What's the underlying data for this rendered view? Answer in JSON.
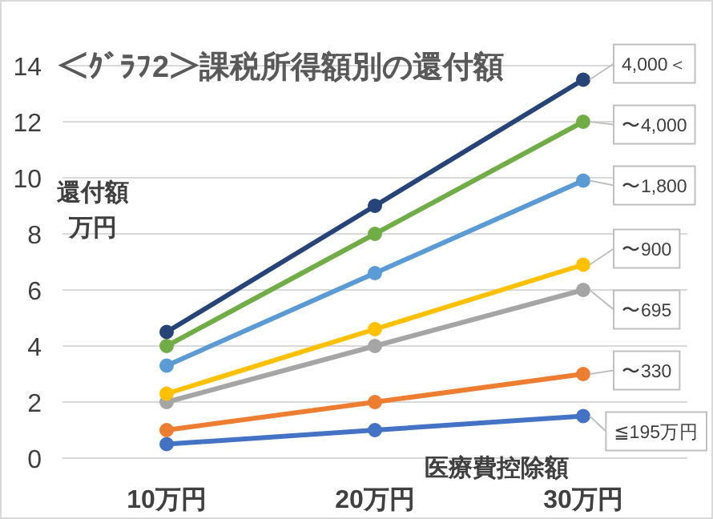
{
  "chart_data": {
    "type": "line",
    "title": "＜ｸﾞﾗﾌ2＞課税所得額別の還付額",
    "xlabel": "医療費控除額",
    "ylabel": "還付額万円",
    "categories": [
      "10万円",
      "20万円",
      "30万円"
    ],
    "series": [
      {
        "name": "≦195万円",
        "color": "#4472c4",
        "values": [
          0.5,
          1,
          1.5
        ]
      },
      {
        "name": "〜330",
        "color": "#ed7d31",
        "values": [
          1,
          2,
          3
        ]
      },
      {
        "name": "〜695",
        "color": "#a5a5a5",
        "values": [
          2,
          4,
          6
        ]
      },
      {
        "name": "〜900",
        "color": "#ffc000",
        "values": [
          2.3,
          4.6,
          6.9
        ]
      },
      {
        "name": "〜1,800",
        "color": "#5b9bd5",
        "values": [
          3.3,
          6.6,
          9.9
        ]
      },
      {
        "name": "〜4,000",
        "color": "#70ad47",
        "values": [
          4,
          8,
          12
        ]
      },
      {
        "name": "4,000＜",
        "color": "#264478",
        "values": [
          4.5,
          9,
          13.5
        ]
      }
    ],
    "ylim": [
      0,
      14
    ],
    "yticks": [
      0,
      2,
      4,
      6,
      8,
      10,
      12,
      14
    ],
    "grid": "y",
    "marker": "circle",
    "line_style": "solid"
  }
}
